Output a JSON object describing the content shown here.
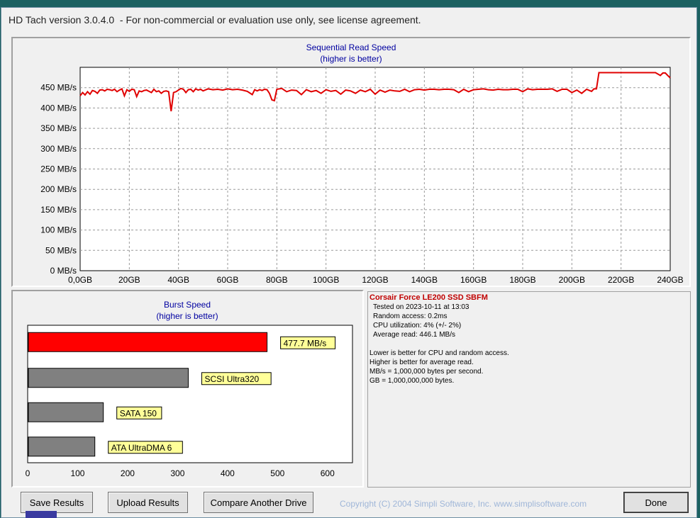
{
  "window": {
    "title": "HD Tach version 3.0.4.0  - For non-commercial or evaluation use only, see license agreement."
  },
  "sequential": {
    "title": "Sequential Read Speed",
    "subtitle": "(higher is better)"
  },
  "burst": {
    "title": "Burst Speed",
    "subtitle": "(higher is better)"
  },
  "info": {
    "drive_name": "Corsair Force LE200 SSD SBFM",
    "lines": [
      "Tested on 2023-10-11 at 13:03",
      "Random access: 0.2ms",
      "CPU utilization: 4% (+/- 2%)",
      "Average read: 446.1 MB/s"
    ],
    "notes": [
      "Lower is better for CPU and random access.",
      "Higher is better for average read.",
      "MB/s = 1,000,000 bytes per second.",
      "GB = 1,000,000,000 bytes."
    ]
  },
  "buttons": {
    "save": "Save Results",
    "upload": "Upload Results",
    "compare": "Compare Another Drive",
    "done": "Done"
  },
  "copyright": "Copyright (C) 2004 Simpli Software, Inc. www.simplisoftware.com",
  "colors": {
    "line": "#e00000",
    "tested_bar": "#ff0000",
    "reference_bar": "#808080",
    "label_bg": "#ffff99"
  },
  "chart_data": [
    {
      "type": "line",
      "title": "Sequential Read Speed",
      "subtitle": "(higher is better)",
      "xlabel": "",
      "ylabel": "",
      "x_ticks": [
        "0,0GB",
        "20GB",
        "40GB",
        "60GB",
        "80GB",
        "100GB",
        "120GB",
        "140GB",
        "160GB",
        "180GB",
        "200GB",
        "220GB",
        "240GB"
      ],
      "y_ticks": [
        "0 MB/s",
        "50 MB/s",
        "100 MB/s",
        "150 MB/s",
        "200 MB/s",
        "250 MB/s",
        "300 MB/s",
        "350 MB/s",
        "400 MB/s",
        "450 MB/s"
      ],
      "xlim": [
        0,
        240
      ],
      "ylim": [
        0,
        500
      ],
      "grid": true,
      "series": [
        {
          "x": [
            0,
            1,
            2,
            3,
            4,
            5,
            6,
            7,
            8,
            9,
            10,
            11,
            12,
            13,
            14,
            15,
            16,
            17,
            18,
            19,
            20,
            21,
            22,
            23,
            24,
            25,
            26,
            27,
            28,
            29,
            30,
            31,
            32,
            33,
            34,
            35,
            36,
            37,
            38,
            39,
            40,
            41,
            42,
            43,
            44,
            45,
            46,
            47,
            48,
            49,
            50,
            52,
            54,
            56,
            58,
            60,
            62,
            64,
            66,
            68,
            70,
            71,
            72,
            73,
            74,
            75,
            76,
            77,
            78,
            79,
            80,
            82,
            84,
            86,
            88,
            90,
            92,
            94,
            96,
            98,
            100,
            102,
            104,
            106,
            108,
            110,
            112,
            114,
            116,
            118,
            120,
            122,
            124,
            126,
            128,
            130,
            132,
            134,
            136,
            138,
            140,
            142,
            144,
            146,
            148,
            150,
            152,
            154,
            156,
            158,
            160,
            162,
            164,
            166,
            168,
            170,
            172,
            174,
            176,
            178,
            180,
            182,
            184,
            186,
            188,
            190,
            192,
            194,
            196,
            198,
            200,
            202,
            204,
            206,
            208,
            209,
            210,
            211,
            212,
            214,
            216,
            218,
            220,
            222,
            224,
            226,
            228,
            230,
            232,
            234,
            236,
            237,
            238,
            239,
            240
          ],
          "y": [
            430,
            438,
            432,
            440,
            434,
            443,
            441,
            436,
            444,
            445,
            442,
            446,
            445,
            443,
            446,
            440,
            444,
            447,
            430,
            445,
            441,
            446,
            445,
            428,
            442,
            440,
            443,
            444,
            441,
            438,
            446,
            440,
            442,
            436,
            441,
            442,
            440,
            392,
            438,
            440,
            444,
            448,
            446,
            438,
            445,
            446,
            440,
            447,
            444,
            446,
            442,
            447,
            445,
            446,
            444,
            447,
            445,
            446,
            444,
            441,
            433,
            445,
            442,
            445,
            443,
            446,
            445,
            436,
            420,
            418,
            446,
            448,
            440,
            444,
            443,
            433,
            445,
            440,
            443,
            436,
            445,
            441,
            443,
            434,
            444,
            442,
            436,
            444,
            440,
            446,
            434,
            444,
            439,
            444,
            442,
            441,
            446,
            440,
            445,
            446,
            444,
            446,
            446,
            445,
            446,
            446,
            445,
            438,
            446,
            440,
            445,
            446,
            447,
            445,
            444,
            446,
            445,
            445,
            446,
            446,
            440,
            447,
            445,
            446,
            446,
            446,
            447,
            441,
            446,
            446,
            438,
            444,
            436,
            446,
            441,
            447,
            447,
            487,
            487,
            487,
            487,
            487,
            487,
            487,
            487,
            487,
            487,
            487,
            487,
            487,
            480,
            486,
            486,
            480,
            474
          ]
        }
      ]
    },
    {
      "type": "bar",
      "title": "Burst Speed",
      "subtitle": "(higher is better)",
      "orientation": "horizontal",
      "categories": [
        "477.7 MB/s",
        "SCSI Ultra320",
        "SATA 150",
        "ATA UltraDMA 6"
      ],
      "values": [
        477.7,
        320,
        150,
        133
      ],
      "x_ticks": [
        "0",
        "100",
        "200",
        "300",
        "400",
        "500",
        "600"
      ],
      "xlim": [
        0,
        650
      ],
      "grid": false
    }
  ]
}
